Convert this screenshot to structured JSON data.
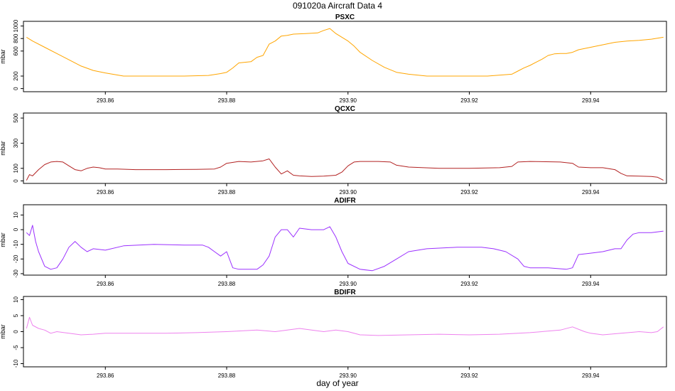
{
  "title": "091020a   Aircraft Data 4",
  "xlabel": "day of year",
  "chart_data": [
    {
      "type": "line",
      "title": "PSXC",
      "ylabel": "mbar",
      "color": "#FFA500",
      "xlim": [
        293.8465,
        293.9525
      ],
      "ylim": [
        -50,
        1075
      ],
      "xticks": [
        293.86,
        293.88,
        293.9,
        293.92,
        293.94
      ],
      "yticks": [
        0,
        200,
        600,
        800,
        1000
      ],
      "series": [
        {
          "x": [
            293.847,
            293.848,
            293.85,
            293.852,
            293.854,
            293.856,
            293.858,
            293.86,
            293.863,
            293.868,
            293.873,
            293.877,
            293.879,
            293.88,
            293.881,
            293.882,
            293.883,
            293.884,
            293.885,
            293.886,
            293.887,
            293.888,
            293.889,
            293.89,
            293.891,
            293.893,
            293.895,
            293.896,
            293.897,
            293.898,
            293.899,
            293.9,
            293.901,
            293.902,
            293.904,
            293.906,
            293.908,
            293.91,
            293.913,
            293.918,
            293.923,
            293.927,
            293.928,
            293.929,
            293.93,
            293.931,
            293.932,
            293.933,
            293.934,
            293.935,
            293.936,
            293.937,
            293.938,
            293.939,
            293.94,
            293.941,
            293.942,
            293.943,
            293.944,
            293.945,
            293.946,
            293.948,
            293.95,
            293.952
          ],
          "y": [
            820,
            760,
            660,
            560,
            460,
            360,
            290,
            250,
            200,
            200,
            200,
            210,
            240,
            260,
            330,
            410,
            420,
            430,
            500,
            530,
            710,
            760,
            840,
            850,
            870,
            880,
            890,
            930,
            960,
            880,
            820,
            760,
            680,
            580,
            450,
            340,
            260,
            230,
            200,
            200,
            200,
            230,
            280,
            330,
            370,
            420,
            470,
            530,
            555,
            560,
            560,
            580,
            620,
            640,
            660,
            680,
            700,
            720,
            740,
            750,
            760,
            770,
            790,
            820
          ]
        }
      ]
    },
    {
      "type": "line",
      "title": "QCXC",
      "ylabel": "mbar",
      "color": "#B22222",
      "xlim": [
        293.8465,
        293.9525
      ],
      "ylim": [
        -20,
        540
      ],
      "xticks": [
        293.86,
        293.88,
        293.9,
        293.92,
        293.94
      ],
      "yticks": [
        0,
        100,
        300,
        500
      ],
      "series": [
        {
          "x": [
            293.847,
            293.8475,
            293.848,
            293.849,
            293.85,
            293.851,
            293.852,
            293.853,
            293.854,
            293.855,
            293.856,
            293.857,
            293.858,
            293.859,
            293.86,
            293.862,
            293.865,
            293.87,
            293.875,
            293.878,
            293.879,
            293.88,
            293.882,
            293.884,
            293.886,
            293.887,
            293.888,
            293.889,
            293.89,
            293.891,
            293.892,
            293.894,
            293.896,
            293.898,
            293.899,
            293.9,
            293.901,
            293.902,
            293.905,
            293.907,
            293.908,
            293.91,
            293.915,
            293.92,
            293.925,
            293.927,
            293.928,
            293.93,
            293.935,
            293.937,
            293.938,
            293.94,
            293.942,
            293.944,
            293.945,
            293.946,
            293.948,
            293.95,
            293.951,
            293.952
          ],
          "y": [
            5,
            50,
            40,
            90,
            130,
            150,
            155,
            150,
            120,
            90,
            80,
            100,
            110,
            105,
            95,
            95,
            90,
            90,
            92,
            95,
            110,
            140,
            155,
            150,
            160,
            175,
            110,
            55,
            80,
            45,
            40,
            35,
            38,
            45,
            70,
            120,
            150,
            155,
            155,
            150,
            125,
            110,
            100,
            100,
            105,
            115,
            150,
            155,
            150,
            140,
            110,
            105,
            105,
            90,
            60,
            40,
            38,
            35,
            30,
            5
          ]
        }
      ]
    },
    {
      "type": "line",
      "title": "ADIFR",
      "ylabel": "mbar",
      "color": "#9B30FF",
      "xlim": [
        293.8465,
        293.9525
      ],
      "ylim": [
        -31,
        17
      ],
      "xticks": [
        293.86,
        293.88,
        293.9,
        293.92,
        293.94
      ],
      "yticks": [
        -30,
        -20,
        -10,
        0,
        10
      ],
      "series": [
        {
          "x": [
            293.847,
            293.8475,
            293.848,
            293.8485,
            293.849,
            293.85,
            293.851,
            293.852,
            293.853,
            293.854,
            293.855,
            293.856,
            293.857,
            293.858,
            293.86,
            293.863,
            293.868,
            293.873,
            293.876,
            293.877,
            293.878,
            293.879,
            293.88,
            293.881,
            293.882,
            293.885,
            293.886,
            293.887,
            293.888,
            293.889,
            293.89,
            293.891,
            293.892,
            293.894,
            293.896,
            293.897,
            293.898,
            293.899,
            293.9,
            293.902,
            293.904,
            293.906,
            293.908,
            293.91,
            293.913,
            293.918,
            293.922,
            293.924,
            293.926,
            293.928,
            293.929,
            293.93,
            293.933,
            293.936,
            293.937,
            293.938,
            293.94,
            293.942,
            293.944,
            293.945,
            293.946,
            293.947,
            293.948,
            293.95,
            293.952
          ],
          "y": [
            -2,
            -4,
            3,
            -8,
            -15,
            -25,
            -27,
            -26,
            -20,
            -12,
            -8,
            -12,
            -15,
            -13,
            -14,
            -11,
            -10,
            -10.5,
            -10.5,
            -12,
            -15,
            -18,
            -15,
            -26,
            -27,
            -27,
            -24,
            -18,
            -5,
            0,
            0,
            -5,
            1,
            0,
            0,
            2,
            -5,
            -15,
            -23,
            -27,
            -28,
            -25,
            -20,
            -15,
            -13,
            -12,
            -12,
            -13,
            -15,
            -20,
            -25,
            -26,
            -26,
            -27,
            -26,
            -17,
            -16,
            -15,
            -13,
            -13,
            -7,
            -3,
            -2,
            -2,
            -1
          ]
        }
      ]
    },
    {
      "type": "line",
      "title": "BDIFR",
      "ylabel": "mbar",
      "color": "#EE82EE",
      "xlim": [
        293.8465,
        293.9525
      ],
      "ylim": [
        -11,
        11
      ],
      "xticks": [
        293.86,
        293.88,
        293.9,
        293.92,
        293.94
      ],
      "yticks": [
        -10,
        -5,
        0,
        5,
        10
      ],
      "series": [
        {
          "x": [
            293.847,
            293.8475,
            293.848,
            293.849,
            293.85,
            293.851,
            293.852,
            293.854,
            293.856,
            293.858,
            293.86,
            293.865,
            293.87,
            293.875,
            293.88,
            293.885,
            293.888,
            293.89,
            293.892,
            293.894,
            293.896,
            293.898,
            293.9,
            293.902,
            293.905,
            293.91,
            293.915,
            293.92,
            293.925,
            293.93,
            293.935,
            293.937,
            293.939,
            293.94,
            293.942,
            293.945,
            293.948,
            293.95,
            293.951,
            293.952
          ],
          "y": [
            1,
            4.5,
            2,
            1,
            0.5,
            -0.5,
            0,
            -0.5,
            -1,
            -0.8,
            -0.5,
            -0.5,
            -0.5,
            -0.3,
            0,
            0.5,
            0,
            0.5,
            1,
            0.5,
            0,
            0.5,
            0,
            -1,
            -1.2,
            -1,
            -0.8,
            -1,
            -0.8,
            -0.3,
            0.5,
            1.5,
            0,
            -0.5,
            -1,
            -0.5,
            0,
            -0.3,
            0,
            1.5
          ]
        }
      ]
    }
  ]
}
